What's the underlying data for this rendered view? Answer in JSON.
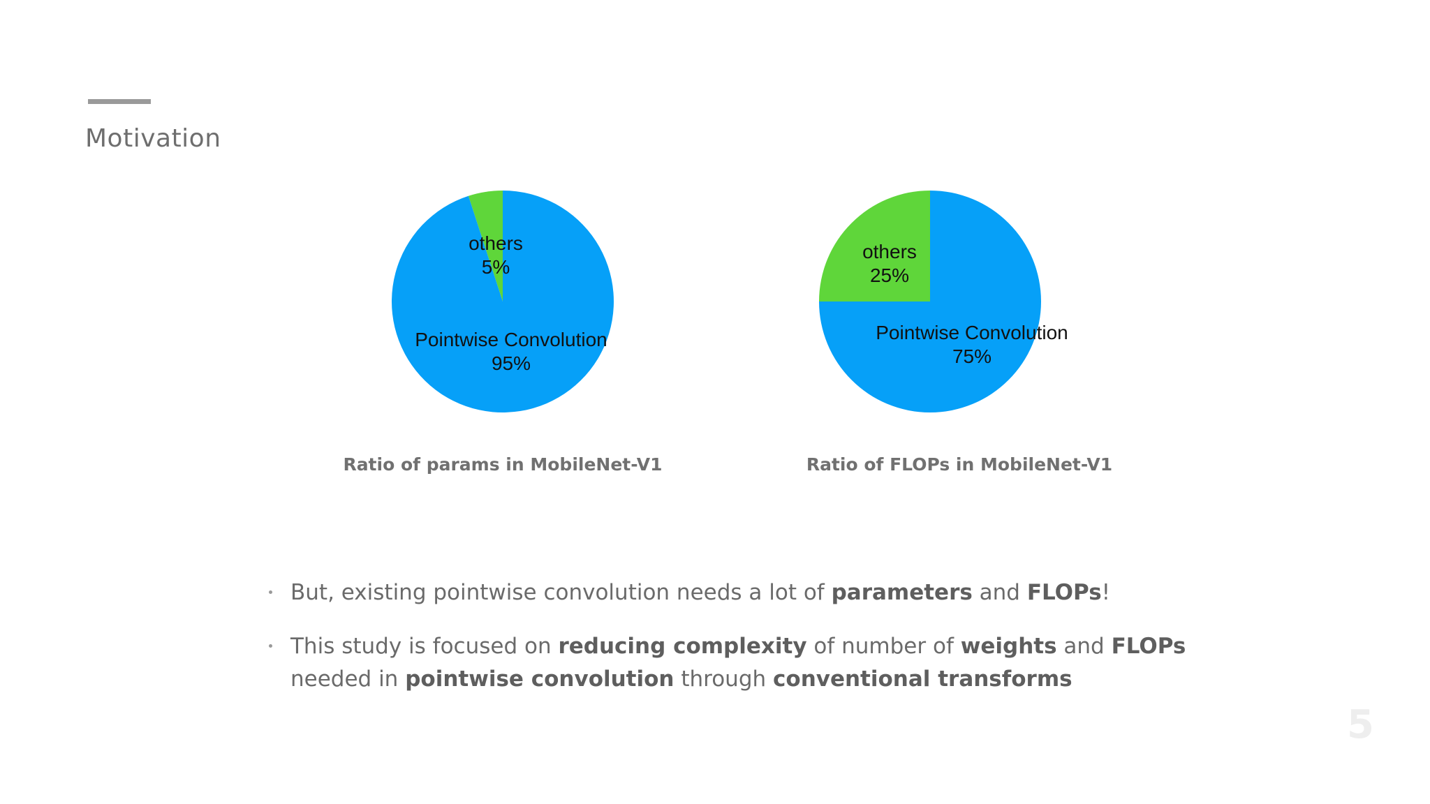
{
  "slide": {
    "title": "Motivation",
    "page_number": "5"
  },
  "colors": {
    "pointwise": "#06a0f8",
    "others": "#5fd63a"
  },
  "chart_data": [
    {
      "type": "pie",
      "title": "Ratio of params in MobileNet-V1",
      "slices": [
        {
          "name": "others",
          "value": 5,
          "label": "5%",
          "color": "#5fd63a"
        },
        {
          "name": "Pointwise Convolution",
          "value": 95,
          "label": "95%",
          "color": "#06a0f8"
        }
      ]
    },
    {
      "type": "pie",
      "title": "Ratio of FLOPs in MobileNet-V1",
      "slices": [
        {
          "name": "others",
          "value": 25,
          "label": "25%",
          "color": "#5fd63a"
        },
        {
          "name": "Pointwise Convolution",
          "value": 75,
          "label": "75%",
          "color": "#06a0f8"
        }
      ]
    }
  ],
  "bullets": [
    {
      "segments": [
        {
          "text": "But, existing pointwise convolution needs a lot of ",
          "bold": false
        },
        {
          "text": "parameters",
          "bold": true
        },
        {
          "text": " and ",
          "bold": false
        },
        {
          "text": "FLOPs",
          "bold": true
        },
        {
          "text": "!",
          "bold": false
        }
      ]
    },
    {
      "segments": [
        {
          "text": "This study is focused on ",
          "bold": false
        },
        {
          "text": "reducing complexity",
          "bold": true
        },
        {
          "text": " of number of ",
          "bold": false
        },
        {
          "text": "weights",
          "bold": true
        },
        {
          "text": " and ",
          "bold": false
        },
        {
          "text": "FLOPs",
          "bold": true
        },
        {
          "text": " needed in ",
          "bold": false
        },
        {
          "text": "pointwise convolution",
          "bold": true
        },
        {
          "text": " through ",
          "bold": false
        },
        {
          "text": "conventional transforms",
          "bold": true
        }
      ]
    }
  ]
}
